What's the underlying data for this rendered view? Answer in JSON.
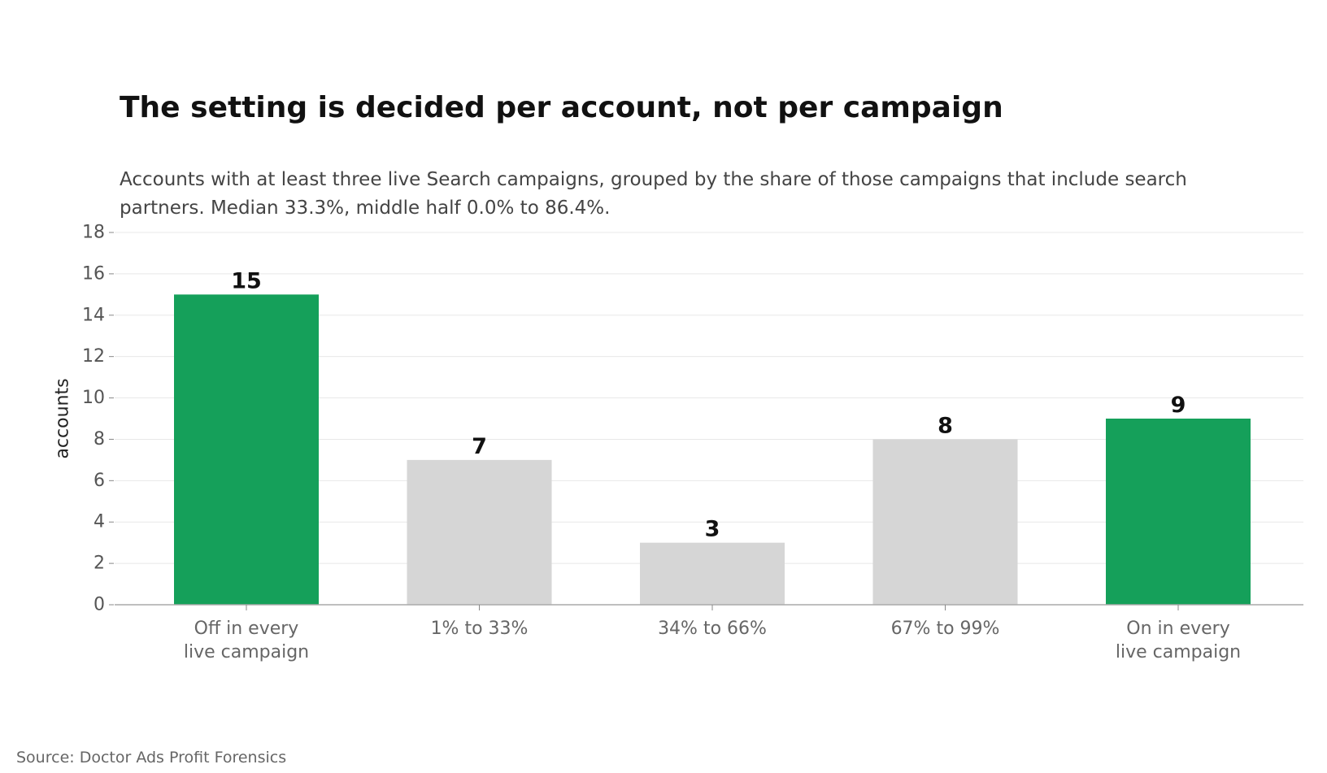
{
  "title": "The setting is decided per account, not per campaign",
  "subtitle": "Accounts with at least three live Search campaigns, grouped by the share of those campaigns that include search partners. Median 33.3%, middle half 0.0% to 86.4%.",
  "source": "Source: Doctor Ads Profit Forensics",
  "colors": {
    "highlight": "#15A05A",
    "muted": "#D6D6D6"
  },
  "chart_data": {
    "type": "bar",
    "categories": [
      [
        "Off in every",
        "live campaign"
      ],
      [
        "1% to 33%"
      ],
      [
        "34% to 66%"
      ],
      [
        "67% to 99%"
      ],
      [
        "On in every",
        "live campaign"
      ]
    ],
    "values": [
      15,
      7,
      3,
      8,
      9
    ],
    "highlighted": [
      true,
      false,
      false,
      false,
      true
    ],
    "xlabel": "",
    "ylabel": "accounts",
    "ylim": [
      0,
      18
    ],
    "yticks": [
      0,
      2,
      4,
      6,
      8,
      10,
      12,
      14,
      16,
      18
    ],
    "grid": "horizontal",
    "data_labels": true
  }
}
